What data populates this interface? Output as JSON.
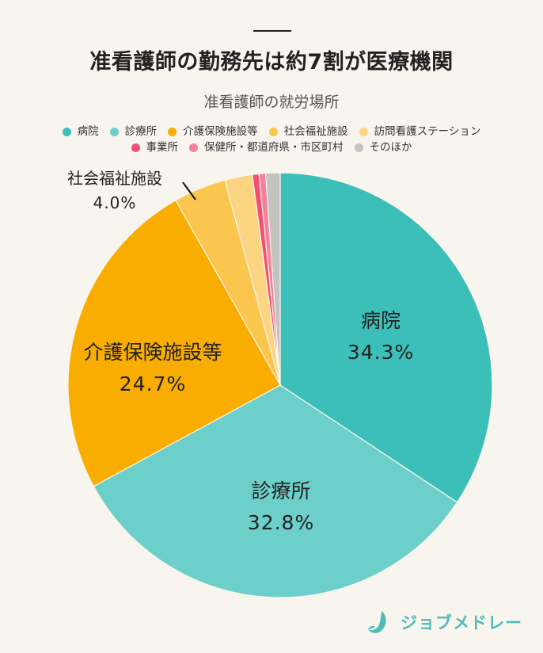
{
  "header": {
    "title": "准看護師の勤務先は約7割が医療機関",
    "subtitle": "准看護師の就労場所"
  },
  "legend": {
    "rows": [
      [
        {
          "label": "病院",
          "color": "#3cbfb9"
        },
        {
          "label": "診療所",
          "color": "#6dcfca"
        },
        {
          "label": "介護保険施設等",
          "color": "#f8ad00"
        },
        {
          "label": "社会福祉施設",
          "color": "#fbc64d"
        },
        {
          "label": "訪問看護ステーション",
          "color": "#fcd582"
        }
      ],
      [
        {
          "label": "事業所",
          "color": "#f25074"
        },
        {
          "label": "保健所・都道府県・市区町村",
          "color": "#f4819a"
        },
        {
          "label": "そのほか",
          "color": "#c3c3c3"
        }
      ]
    ]
  },
  "slice_labels": [
    {
      "name": "病院",
      "pct": "34.3%"
    },
    {
      "name": "診療所",
      "pct": "32.8%"
    },
    {
      "name": "介護保険施設等",
      "pct": "24.7%"
    },
    {
      "name": "社会福祉施設",
      "pct": "4.0%"
    }
  ],
  "logo": {
    "text": "ジョブメドレー",
    "color": "#4fbcb7"
  },
  "chart_data": {
    "type": "pie",
    "title": "准看護師の勤務先は約7割が医療機関",
    "subtitle": "准看護師の就労場所",
    "legend_position": "top",
    "start_angle": "12 o'clock, clockwise",
    "categories": [
      "病院",
      "診療所",
      "介護保険施設等",
      "社会福祉施設",
      "訪問看護ステーション",
      "事業所",
      "保健所・都道府県・市区町村",
      "そのほか"
    ],
    "values": [
      34.3,
      32.8,
      24.7,
      4.0,
      2.1,
      0.5,
      0.5,
      1.1
    ],
    "value_labels": [
      "34.3%",
      "32.8%",
      "24.7%",
      "4.0%",
      "",
      "",
      "",
      ""
    ],
    "colors": [
      "#3cbfb9",
      "#6dcfca",
      "#f8ad00",
      "#fbc64d",
      "#fcd582",
      "#f25074",
      "#f4819a",
      "#c3c3c3"
    ]
  }
}
